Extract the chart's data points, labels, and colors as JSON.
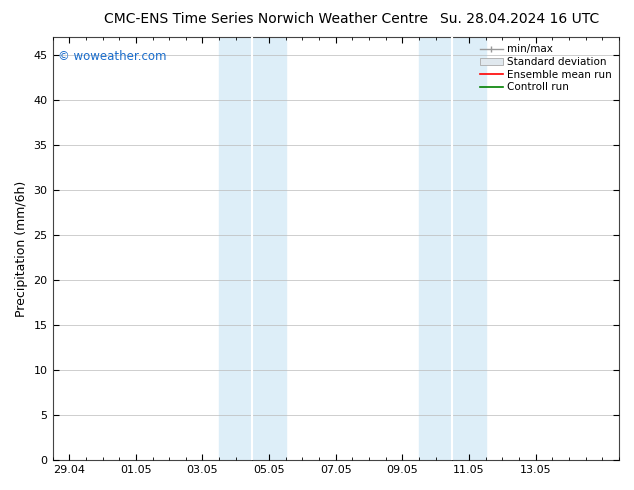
{
  "title_left": "CMC-ENS Time Series Norwich Weather Centre",
  "title_right": "Su. 28.04.2024 16 UTC",
  "ylabel": "Precipitation (mm/6h)",
  "ylim": [
    0,
    47
  ],
  "yticks": [
    0,
    5,
    10,
    15,
    20,
    25,
    30,
    35,
    40,
    45
  ],
  "xlim_start": -0.5,
  "xlim_end": 16.5,
  "xtick_labels": [
    "29.04",
    "01.05",
    "03.05",
    "05.05",
    "07.05",
    "09.05",
    "11.05",
    "13.05"
  ],
  "xtick_positions": [
    0,
    2,
    4,
    6,
    8,
    10,
    12,
    14
  ],
  "shaded_regions": [
    {
      "xmin": 4.5,
      "xmax": 5.5,
      "color": "#ddeef8"
    },
    {
      "xmin": 5.5,
      "xmax": 6.5,
      "color": "#ddeef8"
    },
    {
      "xmin": 10.5,
      "xmax": 11.5,
      "color": "#ddeef8"
    },
    {
      "xmin": 11.5,
      "xmax": 12.5,
      "color": "#ddeef8"
    }
  ],
  "divider_lines": [
    5.5,
    11.5
  ],
  "watermark": "© woweather.com",
  "watermark_color": "#1a6dcc",
  "legend_labels": [
    "min/max",
    "Standard deviation",
    "Ensemble mean run",
    "Controll run"
  ],
  "legend_colors": [
    "#aaaaaa",
    "#cccccc",
    "#ff0000",
    "#008000"
  ],
  "bg_color": "#ffffff",
  "plot_bg_color": "#ddeef8",
  "grid_color": "#bbbbbb",
  "title_fontsize": 10,
  "tick_fontsize": 8,
  "ylabel_fontsize": 9
}
